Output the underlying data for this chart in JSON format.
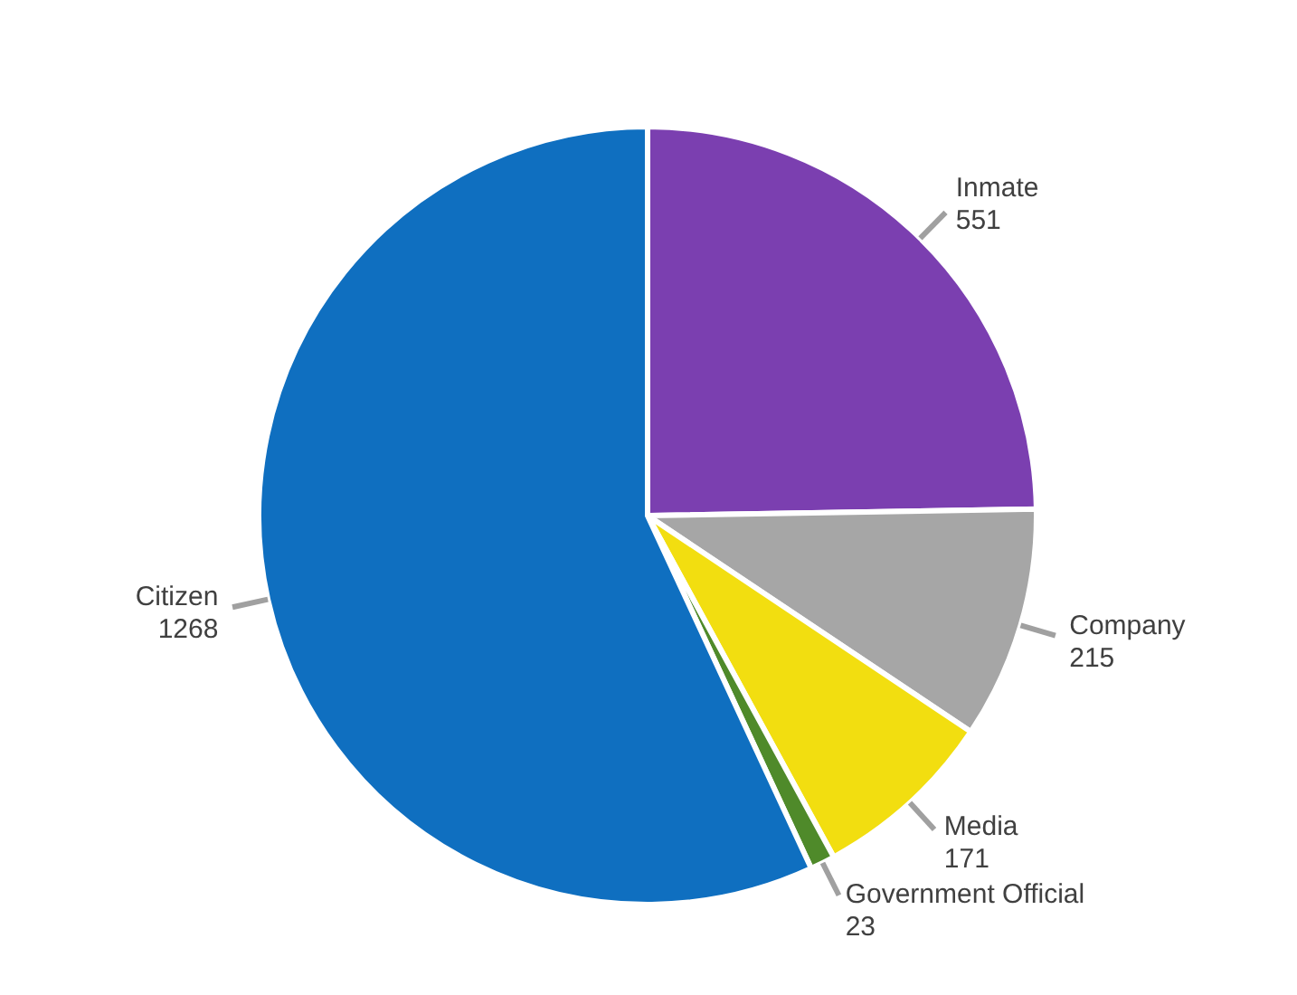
{
  "chart_data": {
    "type": "pie",
    "categories": [
      "Inmate",
      "Company",
      "Media",
      "Government Official",
      "Citizen"
    ],
    "values": [
      551,
      215,
      171,
      23,
      1268
    ],
    "colors": [
      "#7b3fb0",
      "#a6a6a6",
      "#f2de10",
      "#4f8a2a",
      "#0f6fc0"
    ],
    "data_labels": true
  }
}
